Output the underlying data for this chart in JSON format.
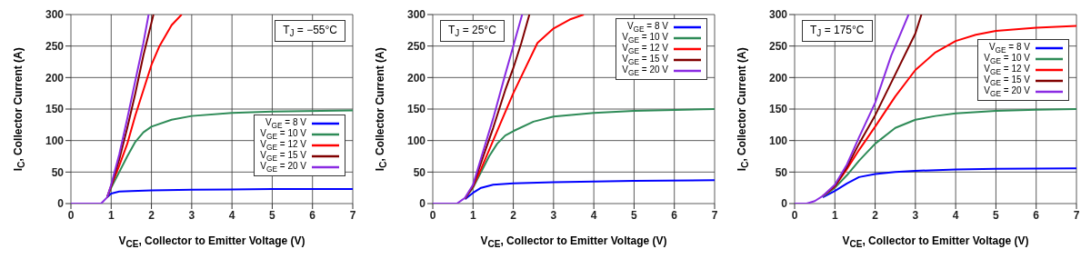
{
  "chart_data": [
    {
      "type": "line",
      "xlabel": "V$_{CE}$, Collector to Emitter Voltage (V)",
      "ylabel": "I$_{C}$, Collector Current (A)",
      "annotations": [
        "T$_{J}$ = −55°C"
      ],
      "xlim": [
        0,
        7
      ],
      "ylim": [
        0,
        300
      ],
      "xticks": [
        0,
        1,
        2,
        3,
        4,
        5,
        6,
        7
      ],
      "yticks": [
        0,
        50,
        100,
        150,
        200,
        250,
        300
      ],
      "grid": true,
      "legend": "bottom right",
      "marker": "none",
      "line_style": "solid",
      "series": [
        {
          "name": "V$_{GE}$ = 8 V",
          "color": "#0000ff",
          "x": [
            0.9,
            1.0,
            1.2,
            1.5,
            2,
            3,
            5,
            7
          ],
          "values": [
            10,
            16,
            19,
            20,
            21,
            22,
            23,
            23
          ]
        },
        {
          "name": "V$_{GE}$ = 10 V",
          "color": "#2e8b57",
          "x": [
            0.9,
            1.0,
            1.2,
            1.4,
            1.6,
            1.8,
            2,
            2.5,
            3,
            4,
            5,
            7
          ],
          "values": [
            10,
            25,
            50,
            75,
            98,
            113,
            122,
            133,
            139,
            144,
            146,
            148
          ]
        },
        {
          "name": "V$_{GE}$ = 12 V",
          "color": "#ff0000",
          "x": [
            0.9,
            1.0,
            1.2,
            1.4,
            1.6,
            1.8,
            2.0,
            2.2,
            2.5,
            2.75
          ],
          "values": [
            10,
            28,
            60,
            95,
            140,
            180,
            220,
            250,
            283,
            300
          ]
        },
        {
          "name": "V$_{GE}$ = 15 V",
          "color": "#800000",
          "x": [
            0.9,
            1.0,
            1.2,
            1.4,
            1.6,
            1.8,
            2.05
          ],
          "values": [
            10,
            28,
            70,
            120,
            175,
            235,
            300
          ]
        },
        {
          "name": "V$_{GE}$ = 20 V",
          "color": "#8a2be2",
          "x": [
            0,
            0.75,
            0.9,
            1.0,
            1.2,
            1.4,
            1.6,
            1.8,
            1.93
          ],
          "values": [
            0,
            0,
            10,
            30,
            78,
            135,
            195,
            255,
            300
          ]
        }
      ]
    },
    {
      "type": "line",
      "xlabel": "V$_{CE}$, Collector to Emitter Voltage (V)",
      "ylabel": "I$_{C}$, Collector Current (A)",
      "annotations": [
        "T$_{J}$ = 25°C"
      ],
      "xlim": [
        0,
        7
      ],
      "ylim": [
        0,
        300
      ],
      "xticks": [
        0,
        1,
        2,
        3,
        4,
        5,
        6,
        7
      ],
      "yticks": [
        0,
        50,
        100,
        150,
        200,
        250,
        300
      ],
      "grid": true,
      "legend": "top right",
      "marker": "none",
      "line_style": "solid",
      "series": [
        {
          "name": "V$_{GE}$ = 8 V",
          "color": "#0000ff",
          "x": [
            0.8,
            1.0,
            1.2,
            1.5,
            2,
            3,
            4,
            5,
            7
          ],
          "values": [
            7,
            17,
            25,
            30,
            32,
            34,
            35,
            36,
            37
          ]
        },
        {
          "name": "V$_{GE}$ = 10 V",
          "color": "#2e8b57",
          "x": [
            0.8,
            1.0,
            1.2,
            1.4,
            1.6,
            1.8,
            2,
            2.5,
            3,
            4,
            5,
            7
          ],
          "values": [
            8,
            25,
            50,
            75,
            95,
            108,
            115,
            130,
            138,
            144,
            147,
            150
          ]
        },
        {
          "name": "V$_{GE}$ = 12 V",
          "color": "#ff0000",
          "x": [
            0.8,
            1.0,
            1.2,
            1.5,
            1.8,
            2,
            2.3,
            2.6,
            3,
            3.4,
            3.75
          ],
          "values": [
            8,
            27,
            55,
            100,
            145,
            175,
            215,
            255,
            278,
            292,
            300
          ]
        },
        {
          "name": "V$_{GE}$ = 15 V",
          "color": "#800000",
          "x": [
            0.8,
            1.0,
            1.2,
            1.5,
            1.8,
            2.0,
            2.2,
            2.4
          ],
          "values": [
            8,
            28,
            65,
            120,
            180,
            215,
            255,
            300
          ]
        },
        {
          "name": "V$_{GE}$ = 20 V",
          "color": "#8a2be2",
          "x": [
            0,
            0.6,
            0.8,
            1.0,
            1.2,
            1.5,
            1.8,
            2.0,
            2.22
          ],
          "values": [
            0,
            0,
            9,
            30,
            72,
            135,
            205,
            250,
            300
          ]
        }
      ]
    },
    {
      "type": "line",
      "xlabel": "V$_{CE}$, Collector to Emitter Voltage (V)",
      "ylabel": "I$_{C}$, Collector Current (A)",
      "annotations": [
        "T$_{J}$ = 175°C"
      ],
      "xlim": [
        0,
        7
      ],
      "ylim": [
        0,
        300
      ],
      "xticks": [
        0,
        1,
        2,
        3,
        4,
        5,
        6,
        7
      ],
      "yticks": [
        0,
        50,
        100,
        150,
        200,
        250,
        300
      ],
      "grid": true,
      "legend": "right",
      "marker": "none",
      "line_style": "solid",
      "series": [
        {
          "name": "V$_{GE}$ = 8 V",
          "color": "#0000ff",
          "x": [
            0.7,
            1.0,
            1.3,
            1.6,
            2,
            2.5,
            3,
            4,
            5,
            7
          ],
          "values": [
            10,
            20,
            32,
            42,
            47,
            50,
            52,
            54,
            55,
            56
          ]
        },
        {
          "name": "V$_{GE}$ = 10 V",
          "color": "#2e8b57",
          "x": [
            0.7,
            1.0,
            1.3,
            1.6,
            2,
            2.5,
            3,
            3.5,
            4,
            5,
            6,
            7
          ],
          "values": [
            11,
            25,
            45,
            68,
            95,
            120,
            133,
            139,
            143,
            147,
            149,
            150
          ]
        },
        {
          "name": "V$_{GE}$ = 12 V",
          "color": "#ff0000",
          "x": [
            0.7,
            1.0,
            1.3,
            1.6,
            2,
            2.5,
            3,
            3.5,
            4,
            4.5,
            5,
            6,
            7
          ],
          "values": [
            12,
            27,
            55,
            85,
            122,
            170,
            212,
            240,
            258,
            268,
            274,
            279,
            282
          ]
        },
        {
          "name": "V$_{GE}$ = 15 V",
          "color": "#800000",
          "x": [
            0.7,
            1.0,
            1.3,
            1.6,
            2,
            2.5,
            3,
            3.15
          ],
          "values": [
            12,
            28,
            58,
            95,
            140,
            205,
            270,
            300
          ]
        },
        {
          "name": "V$_{GE}$ = 20 V",
          "color": "#8a2be2",
          "x": [
            0,
            0.3,
            0.5,
            0.7,
            1.0,
            1.3,
            1.6,
            2,
            2.4,
            2.6,
            2.83
          ],
          "values": [
            0,
            0,
            4,
            12,
            30,
            62,
            105,
            160,
            235,
            265,
            300
          ]
        }
      ]
    }
  ]
}
